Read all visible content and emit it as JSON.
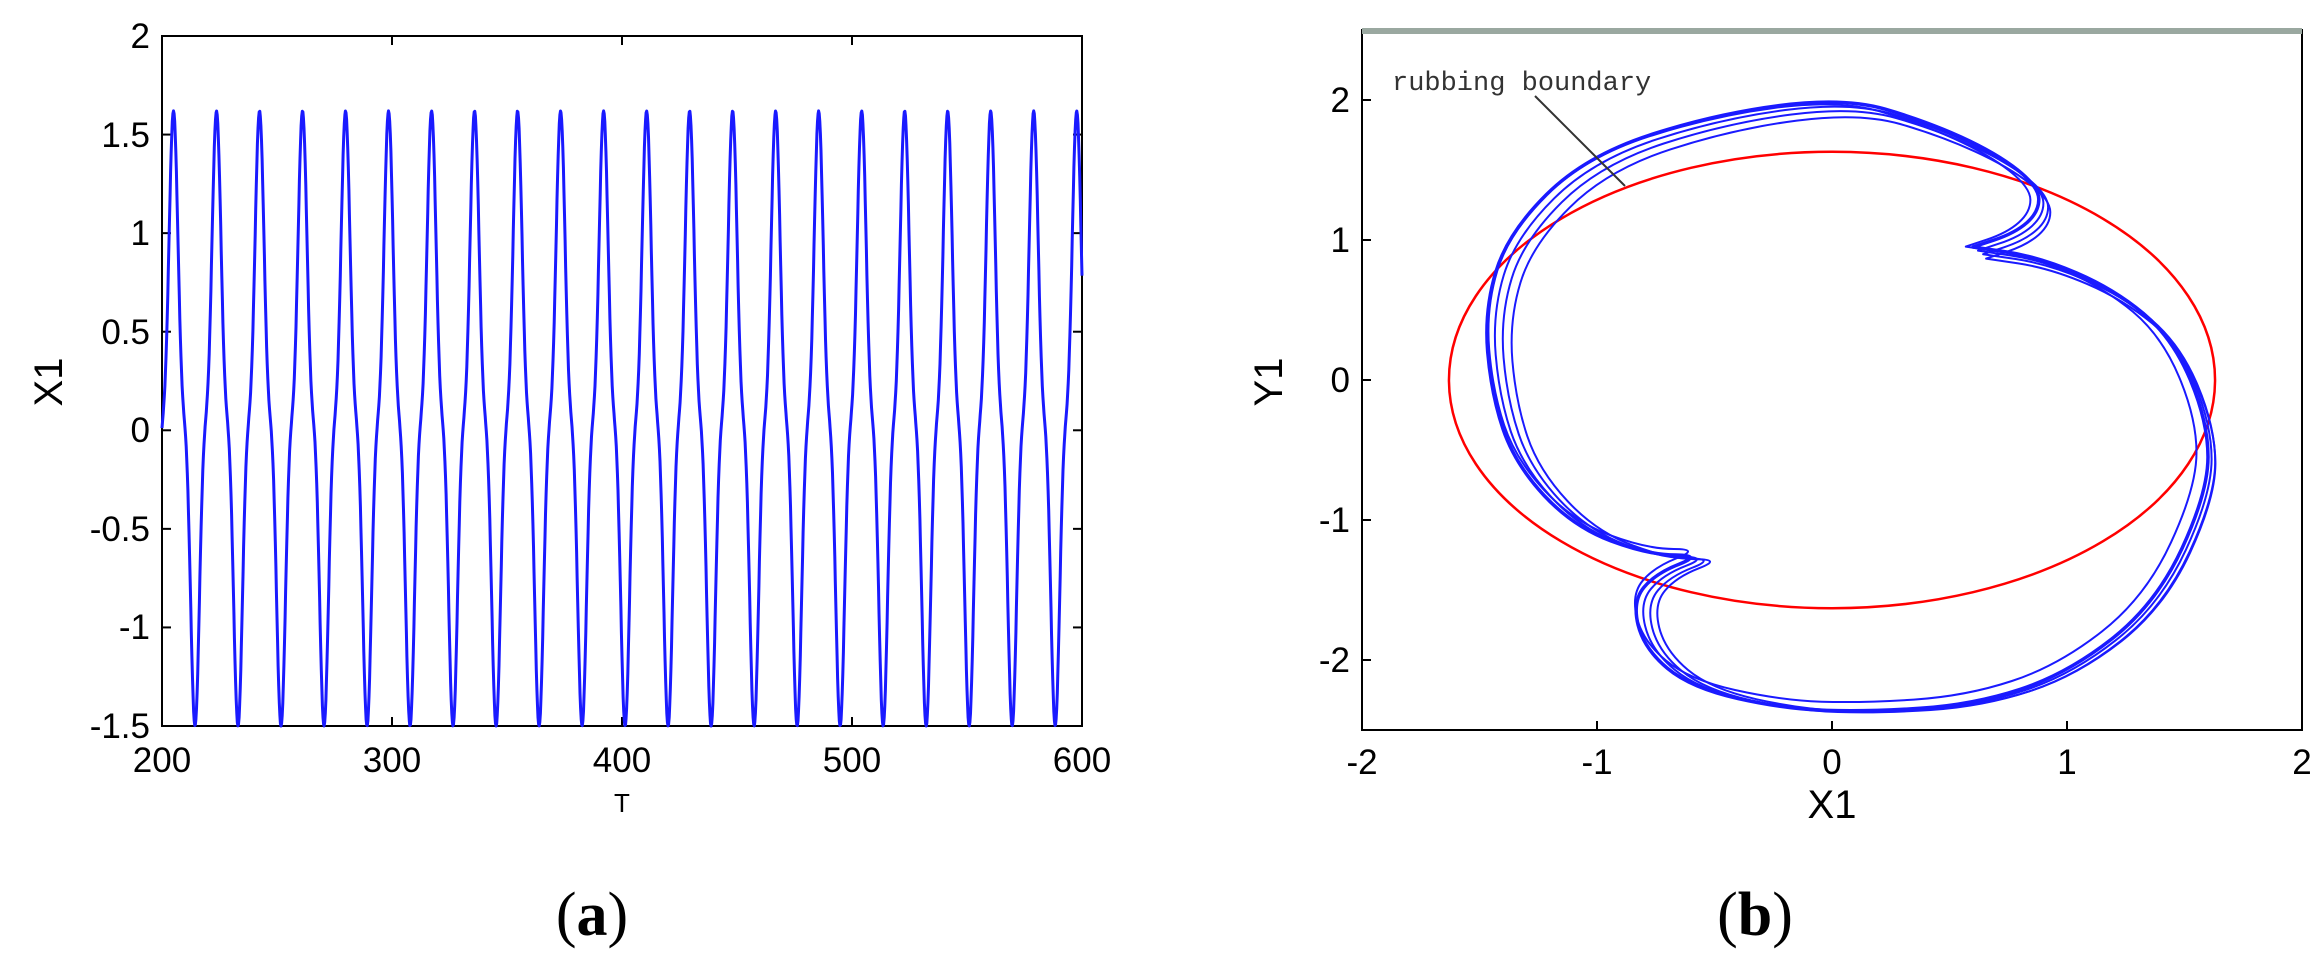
{
  "chart_data": [
    {
      "type": "line",
      "panel_label": {
        "open": "(",
        "letter": "a",
        "close": ")"
      },
      "xlabel": "T",
      "ylabel": "X1",
      "xlim": [
        200,
        600
      ],
      "ylim": [
        -1.5,
        2
      ],
      "xticks": [
        "200",
        "300",
        "400",
        "500",
        "600"
      ],
      "yticks": [
        "-1.5",
        "-1",
        "-0.5",
        "0",
        "0.5",
        "1",
        "1.5",
        "2"
      ],
      "series": [
        {
          "color": "#1a1aff",
          "period": 18.7,
          "peak_max": 1.62,
          "trough_min": -1.5,
          "shoulder_upper": [
            0.6,
            0.82
          ],
          "shoulder_lower": [
            -0.58,
            -0.8
          ]
        }
      ]
    },
    {
      "type": "line",
      "panel_label": {
        "open": "(",
        "letter": "b",
        "close": ")"
      },
      "xlabel": "X1",
      "ylabel": "Y1",
      "xlim": [
        -2,
        2
      ],
      "ylim": [
        -2.5,
        2.5
      ],
      "xticks": [
        "-2",
        "-1",
        "0",
        "1",
        "2"
      ],
      "yticks": [
        "-2",
        "-1",
        "0",
        "1",
        "2"
      ],
      "annotation": "rubbing boundary",
      "series": [
        {
          "color": "#1a1aff",
          "points": [
            [
              0.6,
              0.95
            ],
            [
              0.78,
              1.05
            ],
            [
              0.88,
              1.2
            ],
            [
              0.88,
              1.38
            ],
            [
              0.7,
              1.62
            ],
            [
              0.4,
              1.85
            ],
            [
              0.05,
              2.02
            ],
            [
              -0.5,
              1.9
            ],
            [
              -1.05,
              1.6
            ],
            [
              -1.38,
              1.05
            ],
            [
              -1.48,
              0.5
            ],
            [
              -1.45,
              -0.1
            ],
            [
              -1.35,
              -0.6
            ],
            [
              -1.1,
              -1.05
            ],
            [
              -0.78,
              -1.25
            ],
            [
              -0.55,
              -1.25
            ],
            [
              -0.75,
              -1.38
            ],
            [
              -0.85,
              -1.58
            ],
            [
              -0.8,
              -1.92
            ],
            [
              -0.6,
              -2.2
            ],
            [
              -0.2,
              -2.35
            ],
            [
              0.15,
              -2.37
            ],
            [
              0.6,
              -2.32
            ],
            [
              1.0,
              -2.1
            ],
            [
              1.38,
              -1.6
            ],
            [
              1.6,
              -0.8
            ],
            [
              1.6,
              -0.3
            ],
            [
              1.45,
              0.3
            ],
            [
              1.2,
              0.65
            ],
            [
              0.88,
              0.88
            ],
            [
              0.6,
              0.95
            ]
          ]
        },
        {
          "color": "#ff0000",
          "shape": "ellipse",
          "center": [
            0,
            0
          ],
          "rx": 1.63,
          "ry": 1.63
        }
      ]
    }
  ]
}
